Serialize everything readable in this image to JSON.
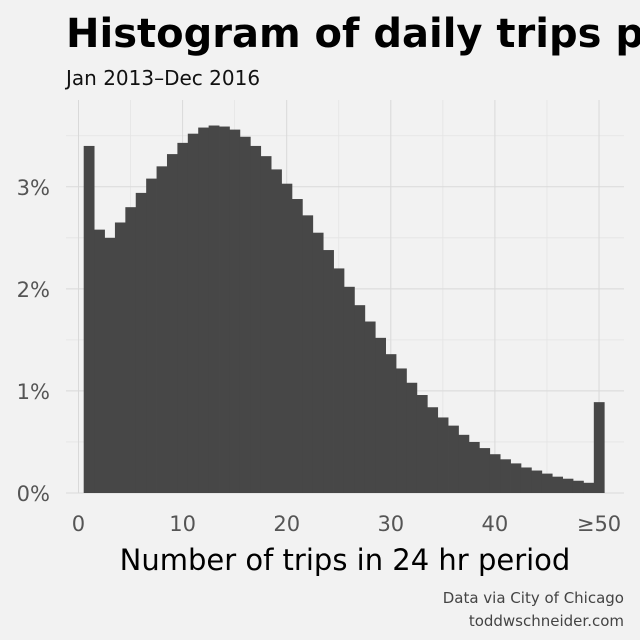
{
  "chart_data": {
    "type": "bar",
    "title": "Histogram of daily trips per taxi",
    "subtitle": "Jan 2013–Dec 2016",
    "xlabel": "Number of trips in 24 hr period",
    "ylabel": "",
    "x_ticks": [
      {
        "value": 0,
        "label": "0"
      },
      {
        "value": 10,
        "label": "10"
      },
      {
        "value": 20,
        "label": "20"
      },
      {
        "value": 30,
        "label": "30"
      },
      {
        "value": 40,
        "label": "40"
      },
      {
        "value": 50,
        "label": "≥50"
      }
    ],
    "y_ticks": [
      {
        "value": 0,
        "label": "0%"
      },
      {
        "value": 1,
        "label": "1%"
      },
      {
        "value": 2,
        "label": "2%"
      },
      {
        "value": 3,
        "label": "3%"
      }
    ],
    "xlim": [
      -1.2,
      52.4
    ],
    "ylim": [
      0,
      3.85
    ],
    "y_unit": "%",
    "grid": true,
    "bar_color": "#474747",
    "background_color": "#f2f2f2",
    "categories": [
      1,
      2,
      3,
      4,
      5,
      6,
      7,
      8,
      9,
      10,
      11,
      12,
      13,
      14,
      15,
      16,
      17,
      18,
      19,
      20,
      21,
      22,
      23,
      24,
      25,
      26,
      27,
      28,
      29,
      30,
      31,
      32,
      33,
      34,
      35,
      36,
      37,
      38,
      39,
      40,
      41,
      42,
      43,
      44,
      45,
      46,
      47,
      48,
      49,
      50
    ],
    "values": [
      3.4,
      2.58,
      2.5,
      2.65,
      2.8,
      2.94,
      3.08,
      3.2,
      3.32,
      3.43,
      3.52,
      3.58,
      3.6,
      3.59,
      3.56,
      3.49,
      3.4,
      3.3,
      3.17,
      3.03,
      2.88,
      2.72,
      2.55,
      2.38,
      2.2,
      2.02,
      1.84,
      1.68,
      1.52,
      1.36,
      1.22,
      1.08,
      0.96,
      0.84,
      0.74,
      0.66,
      0.57,
      0.5,
      0.44,
      0.38,
      0.33,
      0.29,
      0.25,
      0.22,
      0.19,
      0.16,
      0.14,
      0.12,
      0.1,
      0.89
    ]
  },
  "caption": {
    "line1": "Data via City of Chicago",
    "line2": "toddwschneider.com"
  }
}
